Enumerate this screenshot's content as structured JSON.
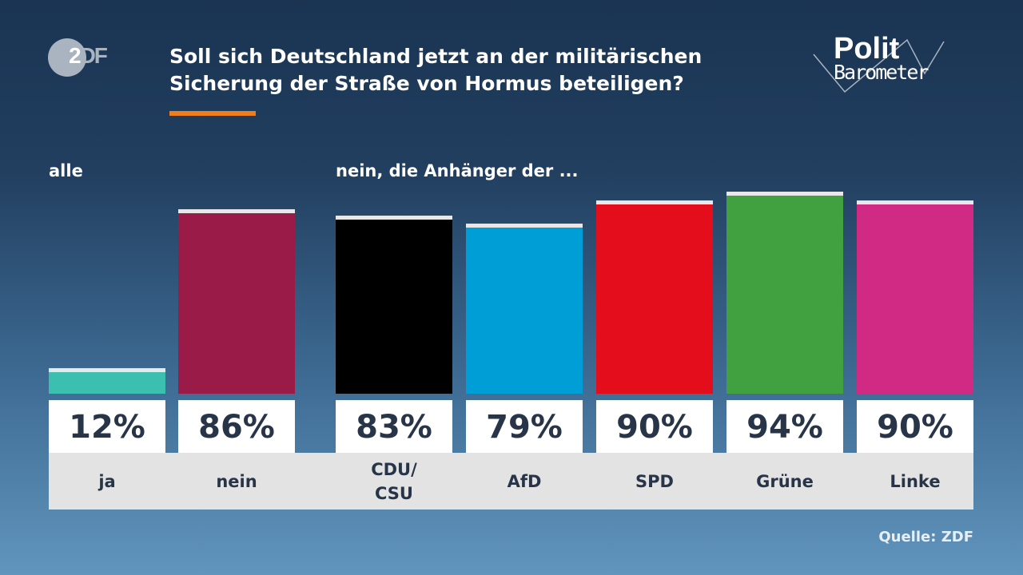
{
  "logo": {
    "left": "Z",
    "right": "DF"
  },
  "title_line1": "Soll sich Deutschland jetzt an der militärischen",
  "title_line2": "Sicherung der Straße von Hormus beteiligen?",
  "brand": {
    "polit": "Polit",
    "barometer": "Barometer",
    "accent_color": "#f07d1a"
  },
  "source": "Quelle: ZDF",
  "chart_data": {
    "type": "bar",
    "groups": [
      {
        "label": "alle",
        "categories": [
          "ja",
          "nein"
        ]
      },
      {
        "label": "nein, die Anhänger der ...",
        "categories": [
          "CDU/\nCSU",
          "AfD",
          "SPD",
          "Grüne",
          "Linke"
        ]
      }
    ],
    "categories": [
      "ja",
      "nein",
      "CDU/\nCSU",
      "AfD",
      "SPD",
      "Grüne",
      "Linke"
    ],
    "values": [
      12,
      86,
      83,
      79,
      90,
      94,
      90
    ],
    "labels": [
      "12%",
      "86%",
      "83%",
      "79%",
      "90%",
      "94%",
      "90%"
    ],
    "colors": [
      "#3dbfb0",
      "#9a1a48",
      "#000000",
      "#009ed6",
      "#e30d1b",
      "#41a03f",
      "#d02a85"
    ],
    "ylim": [
      0,
      100
    ]
  }
}
